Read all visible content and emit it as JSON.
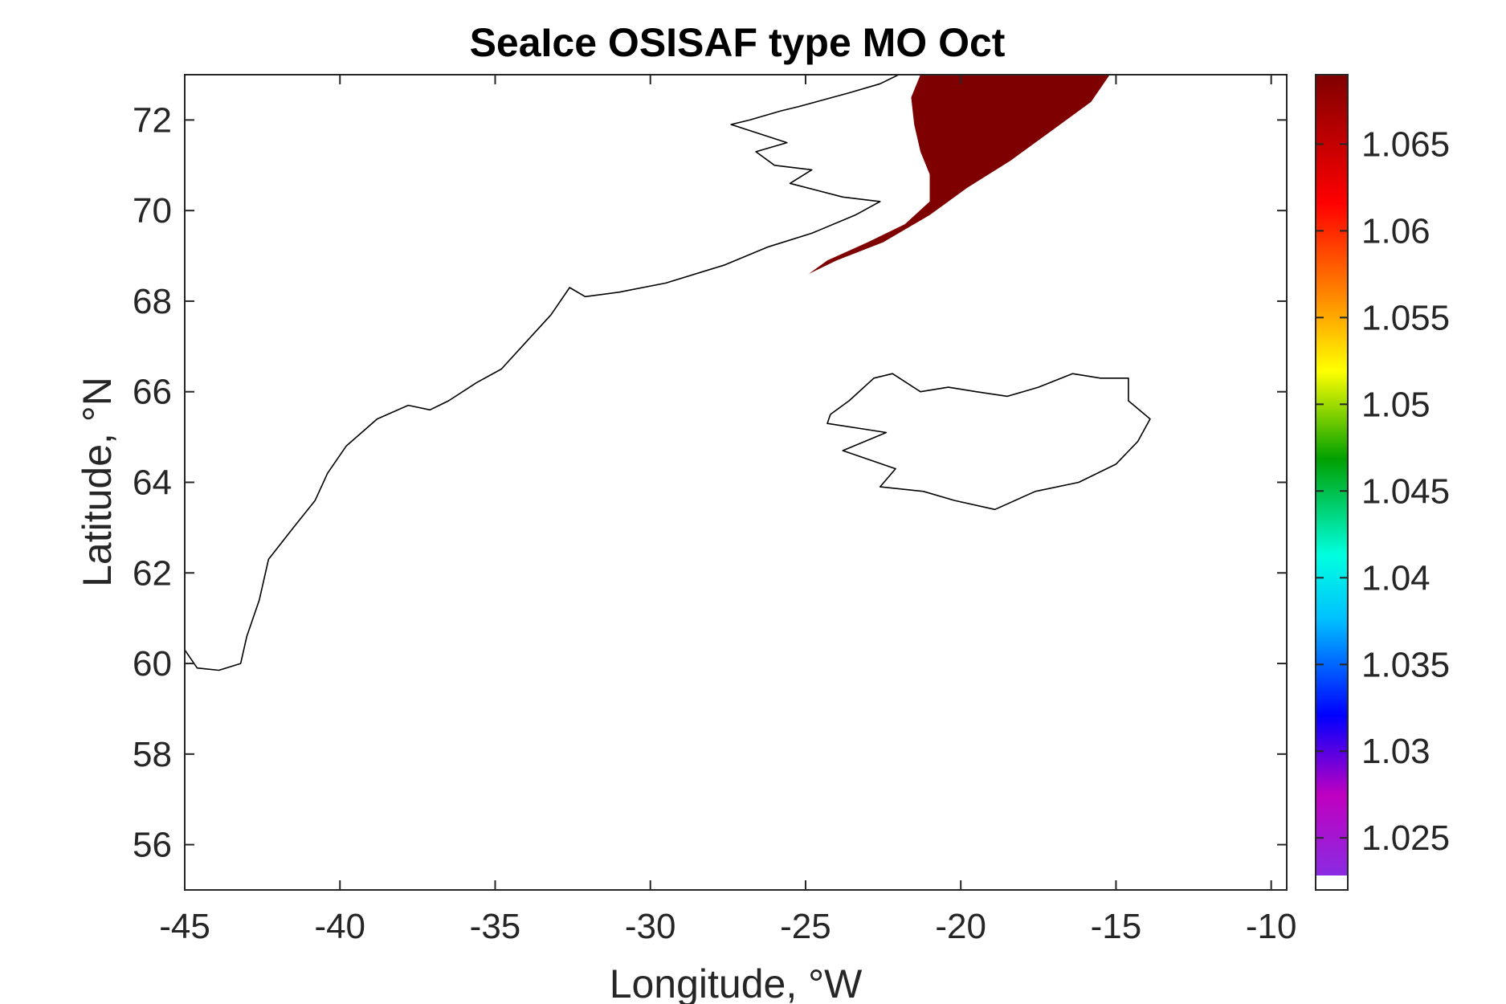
{
  "chart_data": {
    "type": "heatmap",
    "title": "SeaIce OSISAF type MO Oct",
    "xlabel": "Longitude, °W",
    "ylabel": "Latitude, °N",
    "xlim": [
      -45,
      -9.5
    ],
    "ylim": [
      55,
      73
    ],
    "xticks": [
      -45,
      -40,
      -35,
      -30,
      -25,
      -20,
      -15,
      -10
    ],
    "yticks": [
      56,
      58,
      60,
      62,
      64,
      66,
      68,
      70,
      72
    ],
    "colorbar": {
      "range": [
        1.022,
        1.069
      ],
      "ticks": [
        "1.025",
        "1.03",
        "1.035",
        "1.04",
        "1.045",
        "1.05",
        "1.055",
        "1.06",
        "1.065"
      ]
    },
    "ice_region": {
      "value": 1.069,
      "color": "#7f0000",
      "polygon": [
        [
          -21.3,
          73
        ],
        [
          -15.2,
          73
        ],
        [
          -15.8,
          72.4
        ],
        [
          -17.0,
          71.8
        ],
        [
          -18.4,
          71.1
        ],
        [
          -19.8,
          70.5
        ],
        [
          -21.0,
          69.9
        ],
        [
          -22.5,
          69.3
        ],
        [
          -24.0,
          68.9
        ],
        [
          -24.9,
          68.6
        ],
        [
          -24.3,
          68.9
        ],
        [
          -23.0,
          69.3
        ],
        [
          -21.8,
          69.7
        ],
        [
          -21.0,
          70.2
        ],
        [
          -21.0,
          70.8
        ],
        [
          -21.3,
          71.3
        ],
        [
          -21.5,
          71.9
        ],
        [
          -21.6,
          72.5
        ]
      ]
    },
    "coastlines": [
      {
        "name": "Greenland",
        "points": [
          [
            -45,
            60.3
          ],
          [
            -44.6,
            59.9
          ],
          [
            -43.9,
            59.85
          ],
          [
            -43.2,
            60.0
          ],
          [
            -43.0,
            60.6
          ],
          [
            -42.6,
            61.4
          ],
          [
            -42.3,
            62.3
          ],
          [
            -41.5,
            63.0
          ],
          [
            -40.8,
            63.6
          ],
          [
            -40.4,
            64.2
          ],
          [
            -39.8,
            64.8
          ],
          [
            -38.8,
            65.4
          ],
          [
            -37.8,
            65.7
          ],
          [
            -37.1,
            65.6
          ],
          [
            -36.5,
            65.8
          ],
          [
            -35.6,
            66.2
          ],
          [
            -34.8,
            66.5
          ],
          [
            -34.0,
            67.1
          ],
          [
            -33.2,
            67.7
          ],
          [
            -32.6,
            68.3
          ],
          [
            -32.1,
            68.1
          ],
          [
            -31.0,
            68.2
          ],
          [
            -29.5,
            68.4
          ],
          [
            -27.6,
            68.8
          ],
          [
            -26.2,
            69.2
          ],
          [
            -24.8,
            69.5
          ],
          [
            -23.4,
            69.9
          ],
          [
            -22.6,
            70.2
          ],
          [
            -23.8,
            70.3
          ],
          [
            -25.5,
            70.6
          ],
          [
            -24.8,
            70.9
          ],
          [
            -26.0,
            71.0
          ],
          [
            -26.6,
            71.3
          ],
          [
            -25.6,
            71.5
          ],
          [
            -27.4,
            71.9
          ],
          [
            -26.8,
            72.0
          ],
          [
            -25.8,
            72.2
          ],
          [
            -25.2,
            72.3
          ],
          [
            -23.6,
            72.6
          ],
          [
            -22.6,
            72.8
          ],
          [
            -22.0,
            73.0
          ]
        ]
      },
      {
        "name": "Iceland",
        "points": [
          [
            -24.2,
            65.5
          ],
          [
            -23.6,
            65.8
          ],
          [
            -22.8,
            66.3
          ],
          [
            -22.2,
            66.4
          ],
          [
            -21.3,
            66.0
          ],
          [
            -20.4,
            66.1
          ],
          [
            -19.5,
            66.0
          ],
          [
            -18.5,
            65.9
          ],
          [
            -17.5,
            66.1
          ],
          [
            -16.4,
            66.4
          ],
          [
            -15.5,
            66.3
          ],
          [
            -14.6,
            66.3
          ],
          [
            -14.6,
            65.8
          ],
          [
            -13.9,
            65.4
          ],
          [
            -14.3,
            64.9
          ],
          [
            -15.0,
            64.4
          ],
          [
            -16.2,
            64.0
          ],
          [
            -17.6,
            63.8
          ],
          [
            -18.9,
            63.4
          ],
          [
            -20.2,
            63.6
          ],
          [
            -21.2,
            63.8
          ],
          [
            -22.6,
            63.9
          ],
          [
            -22.1,
            64.3
          ],
          [
            -23.8,
            64.7
          ],
          [
            -22.4,
            65.1
          ],
          [
            -24.3,
            65.3
          ],
          [
            -24.2,
            65.5
          ]
        ]
      }
    ]
  }
}
